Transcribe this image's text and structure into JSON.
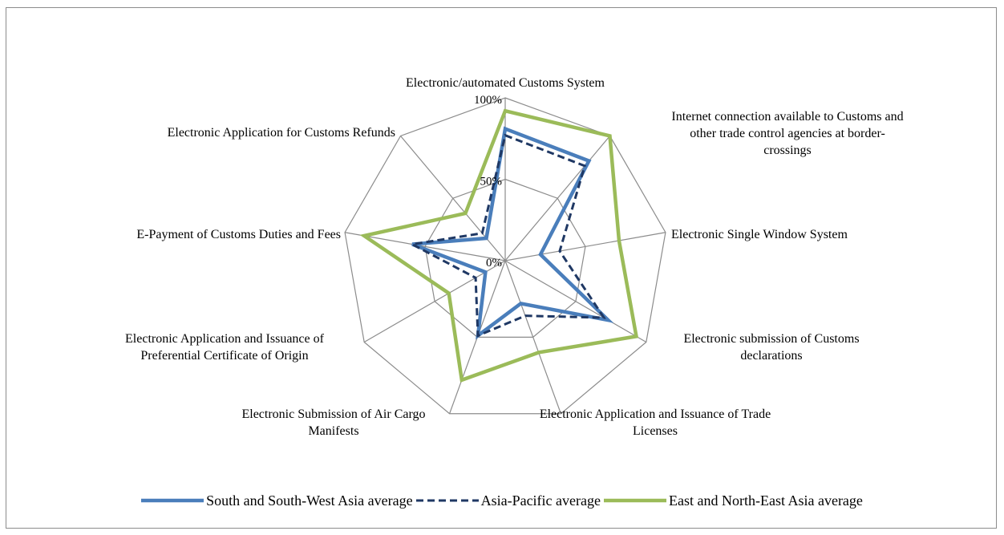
{
  "chart_data": {
    "type": "radar",
    "categories": [
      [
        "Electronic/automated Customs System"
      ],
      [
        "Internet connection available to Customs and",
        "other trade control agencies at border-",
        "crossings"
      ],
      [
        "Electronic Single Window System"
      ],
      [
        "Electronic submission of Customs",
        "declarations"
      ],
      [
        "Electronic Application and Issuance of Trade",
        "Licenses"
      ],
      [
        "Electronic Submission of Air Cargo",
        "Manifests"
      ],
      [
        "Electronic Application and Issuance of",
        "Preferential Certificate of Origin"
      ],
      [
        "E-Payment of Customs Duties and Fees"
      ],
      [
        "Electronic Application for Customs Refunds"
      ]
    ],
    "tick_labels": [
      "0%",
      "50%",
      "100%"
    ],
    "ylim": [
      0,
      100
    ],
    "series": [
      {
        "name": "South and South-West Asia average",
        "color": "#4a7ebb",
        "style": "solid",
        "values": [
          81,
          80,
          22,
          73,
          28,
          49,
          14,
          58,
          18
        ]
      },
      {
        "name": "Asia-Pacific average",
        "color": "#1f3864",
        "style": "dashed",
        "values": [
          77,
          76,
          34,
          70,
          36,
          49,
          21,
          58,
          22
        ]
      },
      {
        "name": "East and North-East Asia average",
        "color": "#9bbb59",
        "style": "solid",
        "values": [
          92,
          100,
          71,
          93,
          60,
          78,
          40,
          88,
          38
        ]
      }
    ],
    "legend_position": "bottom",
    "grid": true
  }
}
